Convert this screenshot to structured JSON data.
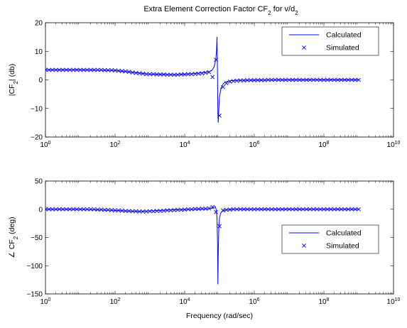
{
  "figure": {
    "title": "Extra Element Correction Factor CF",
    "title_sub": "2",
    "title_tail": " for v/d",
    "title_tail_sub": "2"
  },
  "colors": {
    "line": "#0000ff",
    "axis": "#000000",
    "background": "#ffffff"
  },
  "chart_data": [
    {
      "type": "line",
      "xscale": "log",
      "xlim": [
        1,
        10000000000
      ],
      "ylim": [
        -20,
        20
      ],
      "xticks": [
        1,
        100,
        10000,
        1000000,
        100000000,
        10000000000
      ],
      "xtick_labels": [
        {
          "base": "10",
          "exp": "0"
        },
        {
          "base": "10",
          "exp": "2"
        },
        {
          "base": "10",
          "exp": "4"
        },
        {
          "base": "10",
          "exp": "6"
        },
        {
          "base": "10",
          "exp": "8"
        },
        {
          "base": "10",
          "exp": "10"
        }
      ],
      "yticks": [
        -20,
        -10,
        0,
        10,
        20
      ],
      "ytick_labels": [
        "−20",
        "−10",
        "0",
        "10",
        "20"
      ],
      "ylabel": "|CF",
      "ylabel_sub": "2",
      "ylabel_tail": "| (db)",
      "xlabel": "",
      "legend": {
        "placement": "top-right",
        "entries": [
          {
            "label": "Calculated",
            "marker": "line"
          },
          {
            "label": "Simulated",
            "marker": "x"
          }
        ]
      },
      "series": [
        {
          "name": "Calculated",
          "style": "line",
          "x": [
            1,
            10,
            100,
            1000,
            5000,
            20000,
            50000,
            60000,
            70000,
            78000,
            82000,
            85000,
            88000,
            90000,
            92000,
            95000,
            100000,
            110000,
            130000,
            160000,
            200000,
            300000,
            1000000,
            10000000,
            100000000,
            1000000000
          ],
          "y": [
            3.5,
            3.5,
            3.3,
            2.0,
            1.8,
            2.2,
            2.8,
            3.3,
            4.5,
            7.0,
            10.0,
            15.0,
            1.0,
            -12.0,
            -15.0,
            -11.0,
            -6.0,
            -3.0,
            -1.2,
            -0.6,
            -0.3,
            -0.2,
            -0.1,
            0,
            0,
            0
          ]
        },
        {
          "name": "Simulated",
          "style": "x",
          "x": [
            1,
            1.26,
            1.58,
            2,
            2.51,
            3.16,
            3.98,
            5.01,
            6.31,
            7.94,
            10,
            12.6,
            15.8,
            20,
            25.1,
            31.6,
            39.8,
            50.1,
            63.1,
            79.4,
            100,
            126,
            158,
            200,
            251,
            316,
            398,
            501,
            631,
            794,
            1000,
            1260,
            1580,
            2000,
            2510,
            3160,
            3980,
            5010,
            6310,
            7940,
            10000,
            12600,
            15800,
            20000,
            25100,
            31600,
            39800,
            50100,
            63100,
            79400,
            100000,
            126000,
            158000,
            200000,
            251000,
            316000,
            398000,
            501000,
            631000,
            794000,
            1000000,
            1260000,
            1580000,
            2000000,
            2510000,
            3160000,
            3980000,
            5010000,
            6310000,
            7940000,
            10000000,
            12600000,
            15800000,
            20000000,
            25100000,
            31600000,
            39800000,
            50100000,
            63100000,
            79400000,
            100000000,
            126000000,
            158000000,
            200000000,
            251000000,
            316000000,
            398000000,
            501000000,
            631000000,
            794000000,
            1000000000
          ],
          "y": [
            3.5,
            3.5,
            3.5,
            3.5,
            3.5,
            3.5,
            3.5,
            3.5,
            3.5,
            3.5,
            3.5,
            3.5,
            3.5,
            3.5,
            3.5,
            3.5,
            3.5,
            3.4,
            3.4,
            3.4,
            3.3,
            3.2,
            3.1,
            3.0,
            2.8,
            2.6,
            2.4,
            2.3,
            2.2,
            2.0,
            2.0,
            2.0,
            1.9,
            1.9,
            1.9,
            1.8,
            1.8,
            1.8,
            1.8,
            1.9,
            1.9,
            2.0,
            2.0,
            2.1,
            2.2,
            2.3,
            2.5,
            2.7,
            1.0,
            7.0,
            -12.5,
            -2.5,
            -1.2,
            -0.6,
            -0.4,
            -0.3,
            -0.2,
            -0.2,
            -0.1,
            -0.1,
            -0.1,
            -0.1,
            -0.1,
            -0.1,
            0,
            0,
            0,
            0,
            0,
            0,
            0,
            0,
            0,
            0,
            0,
            0,
            0,
            0,
            0,
            0,
            0,
            0,
            0,
            0,
            0,
            0,
            0,
            0,
            0,
            0,
            0
          ]
        }
      ]
    },
    {
      "type": "line",
      "xscale": "log",
      "xlim": [
        1,
        10000000000
      ],
      "ylim": [
        -150,
        50
      ],
      "xticks": [
        1,
        100,
        10000,
        1000000,
        100000000,
        10000000000
      ],
      "xtick_labels": [
        {
          "base": "10",
          "exp": "0"
        },
        {
          "base": "10",
          "exp": "2"
        },
        {
          "base": "10",
          "exp": "4"
        },
        {
          "base": "10",
          "exp": "6"
        },
        {
          "base": "10",
          "exp": "8"
        },
        {
          "base": "10",
          "exp": "10"
        }
      ],
      "yticks": [
        -150,
        -100,
        -50,
        0,
        50
      ],
      "ytick_labels": [
        "−150",
        "−100",
        "−50",
        "0",
        "50"
      ],
      "ylabel": "∠ CF",
      "ylabel_sub": "2",
      "ylabel_tail": " (deg)",
      "xlabel": "Frequency (rad/sec)",
      "legend": {
        "placement": "center-right",
        "entries": [
          {
            "label": "Calculated",
            "marker": "line"
          },
          {
            "label": "Simulated",
            "marker": "x"
          }
        ]
      },
      "series": [
        {
          "name": "Calculated",
          "style": "line",
          "x": [
            1,
            10,
            100,
            500,
            1000,
            5000,
            20000,
            50000,
            65000,
            75000,
            80000,
            85000,
            88000,
            90000,
            92000,
            95000,
            100000,
            110000,
            130000,
            160000,
            250000,
            1000000,
            10000000,
            100000000,
            1000000000
          ],
          "y": [
            0,
            0,
            -2,
            -4,
            -3,
            -1,
            0,
            1,
            2,
            5,
            0,
            -15,
            -60,
            -133,
            -80,
            -40,
            -15,
            -6,
            -2,
            -1,
            0,
            0,
            0,
            0,
            0
          ]
        },
        {
          "name": "Simulated",
          "style": "x",
          "x": [
            1,
            1.26,
            1.58,
            2,
            2.51,
            3.16,
            3.98,
            5.01,
            6.31,
            7.94,
            10,
            12.6,
            15.8,
            20,
            25.1,
            31.6,
            39.8,
            50.1,
            63.1,
            79.4,
            100,
            126,
            158,
            200,
            251,
            316,
            398,
            501,
            631,
            794,
            1000,
            1260,
            1580,
            2000,
            2510,
            3160,
            3980,
            5010,
            6310,
            7940,
            10000,
            12600,
            15800,
            20000,
            25100,
            31600,
            39800,
            50100,
            63100,
            79400,
            100000,
            126000,
            158000,
            200000,
            251000,
            316000,
            398000,
            501000,
            631000,
            794000,
            1000000,
            1260000,
            1580000,
            2000000,
            2510000,
            3160000,
            3980000,
            5010000,
            6310000,
            7940000,
            10000000,
            12600000,
            15800000,
            20000000,
            25100000,
            31600000,
            39800000,
            50100000,
            63100000,
            79400000,
            100000000,
            126000000,
            158000000,
            200000000,
            251000000,
            316000000,
            398000000,
            501000000,
            631000000,
            794000000,
            1000000000
          ],
          "y": [
            0,
            0,
            0,
            0,
            0,
            0,
            0,
            0,
            0,
            0,
            0,
            0,
            0,
            0,
            0,
            -0.5,
            -0.5,
            -1,
            -1,
            -1.5,
            -2,
            -2,
            -2.5,
            -3,
            -3,
            -3.5,
            -3.5,
            -4,
            -4,
            -4,
            -3.5,
            -3.5,
            -3,
            -3,
            -2.5,
            -2,
            -2,
            -1.5,
            -1,
            -1,
            -0.5,
            0,
            0,
            0.5,
            0.5,
            1,
            1,
            1.5,
            4,
            -5,
            -30,
            -2,
            -1,
            -0.5,
            0,
            0,
            0,
            0,
            0,
            0,
            0,
            0,
            0,
            0,
            0,
            0,
            0,
            0,
            0,
            0,
            0,
            0,
            0,
            0,
            0,
            0,
            0,
            0,
            0,
            0,
            0,
            0,
            0,
            0,
            0,
            0,
            0,
            0,
            0,
            0,
            0
          ]
        }
      ]
    }
  ]
}
